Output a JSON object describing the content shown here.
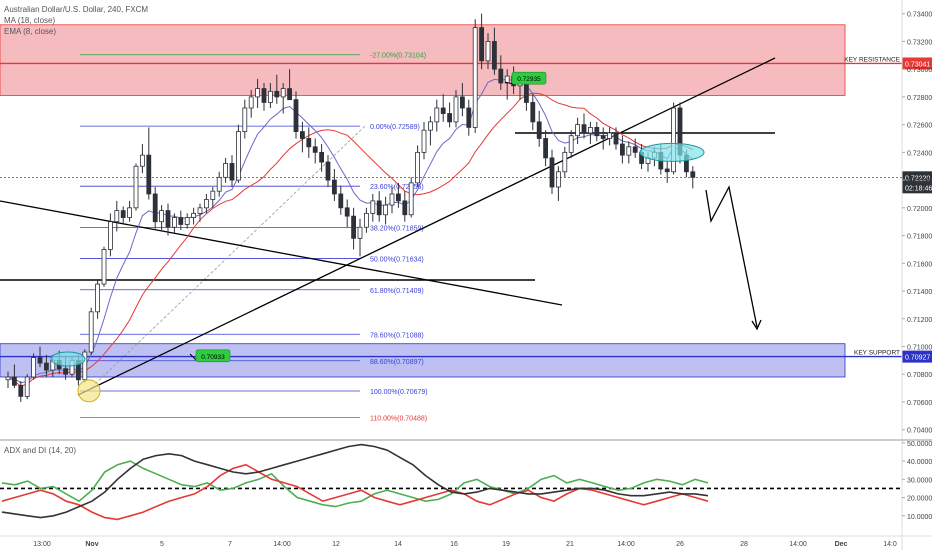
{
  "legend": {
    "symbol": "Australian Dollar/U.S. Dollar, 240, FXCM",
    "ma": "MA (18, close)",
    "ema": "EMA (8, close)",
    "adx": "ADX and DI (14, 20)"
  },
  "colors": {
    "resistance_zone": "#f4b4b8",
    "support_zone": "#b7b9f0",
    "up_candle": "#ffffff",
    "down_candle": "#2d3138",
    "ma": "#e53935",
    "ema": "#6c67c9",
    "fib": "#3a3fd6",
    "fib_top": "#26a641",
    "fib_bottom": "#e53935",
    "tag": "#2ecc40",
    "price_tag": "#2d3138",
    "resistance_tag": "#e53935",
    "support_tag": "#2b33c7"
  },
  "chart_data": {
    "type": "candlestick",
    "price_axis": {
      "ticks": [
        "0.73400",
        "0.73200",
        "0.73000",
        "0.72800",
        "0.72600",
        "0.72400",
        "0.72200",
        "0.72000",
        "0.71800",
        "0.71600",
        "0.71400",
        "0.71200",
        "0.71000",
        "0.70800",
        "0.70600",
        "0.70400"
      ],
      "ylim": [
        0.7034,
        0.7347
      ]
    },
    "time_axis": [
      "13:00",
      "Nov",
      "5",
      "7",
      "14:00",
      "12",
      "14",
      "16",
      "19",
      "21",
      "14:00",
      "26",
      "28",
      "14:00",
      "Dec",
      "14:0"
    ],
    "current_price": "0.72220",
    "countdown": "02:18:46",
    "candles": [
      [
        0.7076,
        0.7082,
        0.707,
        0.7078
      ],
      [
        0.7078,
        0.7087,
        0.707,
        0.7072
      ],
      [
        0.7072,
        0.7075,
        0.706,
        0.7064
      ],
      [
        0.7064,
        0.708,
        0.7062,
        0.7078
      ],
      [
        0.7078,
        0.7095,
        0.7076,
        0.7092
      ],
      [
        0.7092,
        0.71,
        0.7085,
        0.7088
      ],
      [
        0.7088,
        0.7094,
        0.7078,
        0.7083
      ],
      [
        0.7083,
        0.7094,
        0.7078,
        0.709
      ],
      [
        0.709,
        0.7097,
        0.708,
        0.7084
      ],
      [
        0.7084,
        0.7093,
        0.7076,
        0.708
      ],
      [
        0.708,
        0.7093,
        0.7078,
        0.709
      ],
      [
        0.709,
        0.7094,
        0.7072,
        0.7076
      ],
      [
        0.7076,
        0.7098,
        0.7074,
        0.7096
      ],
      [
        0.7096,
        0.7128,
        0.7094,
        0.7125
      ],
      [
        0.7125,
        0.7148,
        0.712,
        0.7145
      ],
      [
        0.7145,
        0.7172,
        0.7143,
        0.717
      ],
      [
        0.717,
        0.7196,
        0.7165,
        0.719
      ],
      [
        0.719,
        0.7205,
        0.7183,
        0.7198
      ],
      [
        0.7198,
        0.7201,
        0.7188,
        0.7193
      ],
      [
        0.7193,
        0.7205,
        0.719,
        0.72
      ],
      [
        0.72,
        0.7232,
        0.7198,
        0.723
      ],
      [
        0.723,
        0.7246,
        0.7225,
        0.7238
      ],
      [
        0.7238,
        0.7258,
        0.7206,
        0.721
      ],
      [
        0.721,
        0.7215,
        0.7185,
        0.719
      ],
      [
        0.719,
        0.7202,
        0.7184,
        0.7198
      ],
      [
        0.7198,
        0.7203,
        0.718,
        0.7186
      ],
      [
        0.7186,
        0.7196,
        0.7182,
        0.7193
      ],
      [
        0.7193,
        0.7198,
        0.7184,
        0.7188
      ],
      [
        0.7188,
        0.7196,
        0.7185,
        0.7193
      ],
      [
        0.7193,
        0.72,
        0.7188,
        0.7196
      ],
      [
        0.7196,
        0.7203,
        0.719,
        0.72
      ],
      [
        0.72,
        0.721,
        0.7196,
        0.7206
      ],
      [
        0.7206,
        0.7215,
        0.72,
        0.7212
      ],
      [
        0.7212,
        0.7226,
        0.7208,
        0.7222
      ],
      [
        0.7222,
        0.7236,
        0.7218,
        0.7232
      ],
      [
        0.7232,
        0.7238,
        0.7215,
        0.722
      ],
      [
        0.722,
        0.726,
        0.7218,
        0.7255
      ],
      [
        0.7255,
        0.7278,
        0.725,
        0.7272
      ],
      [
        0.7272,
        0.7285,
        0.7265,
        0.728
      ],
      [
        0.728,
        0.7293,
        0.7272,
        0.7286
      ],
      [
        0.7286,
        0.729,
        0.727,
        0.7276
      ],
      [
        0.7276,
        0.729,
        0.7272,
        0.7284
      ],
      [
        0.7284,
        0.7296,
        0.7275,
        0.728
      ],
      [
        0.728,
        0.729,
        0.7268,
        0.7286
      ],
      [
        0.7286,
        0.73,
        0.728,
        0.7278
      ],
      [
        0.7278,
        0.7284,
        0.725,
        0.7255
      ],
      [
        0.7255,
        0.7262,
        0.724,
        0.725
      ],
      [
        0.725,
        0.7258,
        0.7236,
        0.7244
      ],
      [
        0.7244,
        0.725,
        0.7232,
        0.724
      ],
      [
        0.724,
        0.7246,
        0.7226,
        0.7233
      ],
      [
        0.7233,
        0.7238,
        0.7215,
        0.722
      ],
      [
        0.722,
        0.7228,
        0.7205,
        0.721
      ],
      [
        0.721,
        0.7216,
        0.7195,
        0.72
      ],
      [
        0.72,
        0.7206,
        0.7186,
        0.7194
      ],
      [
        0.7194,
        0.72,
        0.717,
        0.7178
      ],
      [
        0.7178,
        0.7192,
        0.7165,
        0.7186
      ],
      [
        0.7186,
        0.72,
        0.7182,
        0.7196
      ],
      [
        0.7196,
        0.721,
        0.719,
        0.7205
      ],
      [
        0.7205,
        0.7212,
        0.719,
        0.7195
      ],
      [
        0.7195,
        0.7208,
        0.7188,
        0.7202
      ],
      [
        0.7202,
        0.7215,
        0.7196,
        0.721
      ],
      [
        0.721,
        0.7218,
        0.72,
        0.7205
      ],
      [
        0.7205,
        0.7212,
        0.719,
        0.7195
      ],
      [
        0.7195,
        0.7222,
        0.7193,
        0.7218
      ],
      [
        0.7218,
        0.7245,
        0.7215,
        0.724
      ],
      [
        0.724,
        0.7262,
        0.7235,
        0.7256
      ],
      [
        0.7256,
        0.7266,
        0.7245,
        0.7262
      ],
      [
        0.7262,
        0.7278,
        0.7255,
        0.7272
      ],
      [
        0.7272,
        0.7282,
        0.7262,
        0.7268
      ],
      [
        0.7268,
        0.7276,
        0.7258,
        0.7262
      ],
      [
        0.7262,
        0.7285,
        0.7258,
        0.728
      ],
      [
        0.728,
        0.729,
        0.7266,
        0.7272
      ],
      [
        0.7272,
        0.7278,
        0.7252,
        0.7258
      ],
      [
        0.7258,
        0.7336,
        0.7254,
        0.733
      ],
      [
        0.733,
        0.734,
        0.73,
        0.7306
      ],
      [
        0.7306,
        0.7326,
        0.73,
        0.732
      ],
      [
        0.732,
        0.733,
        0.7296,
        0.73
      ],
      [
        0.73,
        0.731,
        0.7285,
        0.729
      ],
      [
        0.729,
        0.73,
        0.7278,
        0.7295
      ],
      [
        0.7295,
        0.7302,
        0.7282,
        0.7288
      ],
      [
        0.7288,
        0.7296,
        0.7278,
        0.7292
      ],
      [
        0.7292,
        0.7296,
        0.727,
        0.7276
      ],
      [
        0.7276,
        0.7282,
        0.7256,
        0.7262
      ],
      [
        0.7262,
        0.727,
        0.7244,
        0.725
      ],
      [
        0.725,
        0.7256,
        0.723,
        0.7236
      ],
      [
        0.7236,
        0.7242,
        0.721,
        0.7215
      ],
      [
        0.7215,
        0.723,
        0.7205,
        0.7226
      ],
      [
        0.7226,
        0.7244,
        0.7222,
        0.724
      ],
      [
        0.724,
        0.7256,
        0.7236,
        0.7252
      ],
      [
        0.7252,
        0.7265,
        0.7246,
        0.726
      ],
      [
        0.726,
        0.7268,
        0.725,
        0.7254
      ],
      [
        0.7254,
        0.7262,
        0.7246,
        0.7258
      ],
      [
        0.7258,
        0.7262,
        0.7248,
        0.7252
      ],
      [
        0.7252,
        0.7258,
        0.7242,
        0.725
      ],
      [
        0.725,
        0.7258,
        0.7245,
        0.7254
      ],
      [
        0.7254,
        0.7258,
        0.7242,
        0.7246
      ],
      [
        0.7246,
        0.7252,
        0.7232,
        0.7238
      ],
      [
        0.7238,
        0.7248,
        0.7232,
        0.7244
      ],
      [
        0.7244,
        0.725,
        0.7236,
        0.724
      ],
      [
        0.724,
        0.7246,
        0.7228,
        0.7232
      ],
      [
        0.7232,
        0.724,
        0.7226,
        0.7236
      ],
      [
        0.7236,
        0.7244,
        0.723,
        0.724
      ],
      [
        0.724,
        0.7246,
        0.7224,
        0.7228
      ],
      [
        0.7228,
        0.7234,
        0.7218,
        0.7226
      ],
      [
        0.7226,
        0.7276,
        0.7224,
        0.7272
      ],
      [
        0.7272,
        0.7276,
        0.7232,
        0.7238
      ],
      [
        0.7238,
        0.7242,
        0.7222,
        0.7226
      ],
      [
        0.7226,
        0.723,
        0.7214,
        0.7222
      ]
    ],
    "horizontal_lines": [
      {
        "label": "KEY RESISTANCE",
        "value": 0.73041
      },
      {
        "label": "KEY SUPPORT",
        "value": 0.70927
      }
    ],
    "zones": [
      {
        "name": "resistance",
        "from": 0.7281,
        "to": 0.7332
      },
      {
        "name": "support",
        "from": 0.7078,
        "to": 0.7102
      }
    ],
    "fibonacci": [
      {
        "label": "-27.00%(0.73104)",
        "value": 0.73104
      },
      {
        "label": "0.00%(0.72589)",
        "value": 0.72589
      },
      {
        "label": "23.60%(0.72156)",
        "value": 0.72156
      },
      {
        "label": "38.20%(0.71859)",
        "value": 0.71859
      },
      {
        "label": "50.00%(0.71634)",
        "value": 0.71634
      },
      {
        "label": "61.80%(0.71409)",
        "value": 0.71409
      },
      {
        "label": "78.60%(0.71088)",
        "value": 0.71088
      },
      {
        "label": "88.60%(0.70897)",
        "value": 0.70897
      },
      {
        "label": "100.00%(0.70679)",
        "value": 0.70679
      },
      {
        "label": "110.00%(0.70488)",
        "value": 0.70488
      }
    ],
    "callouts": [
      "0.72935",
      "0.70933"
    ],
    "adx": {
      "ticks": [
        "50.0000",
        "40.0000",
        "30.0000",
        "20.0000",
        "10.0000"
      ],
      "ylim": [
        0,
        51
      ],
      "threshold": 25,
      "adx_values": [
        12,
        11,
        10,
        9,
        10,
        12,
        15,
        18,
        23,
        30,
        36,
        41,
        43,
        44,
        43,
        40,
        38,
        36,
        34,
        33,
        34,
        36,
        38,
        40,
        42,
        44,
        46,
        48,
        49,
        48,
        46,
        42,
        38,
        32,
        27,
        23,
        22,
        23,
        25,
        24,
        23,
        22,
        22,
        23,
        24,
        25,
        25,
        24,
        22,
        21,
        21,
        22,
        23,
        22,
        22,
        21
      ],
      "plus_di_values": [
        28,
        27,
        29,
        25,
        26,
        22,
        18,
        24,
        34,
        38,
        40,
        36,
        33,
        30,
        27,
        26,
        28,
        24,
        25,
        28,
        30,
        33,
        26,
        20,
        18,
        16,
        15,
        17,
        18,
        22,
        24,
        22,
        20,
        18,
        19,
        22,
        28,
        30,
        26,
        24,
        22,
        25,
        30,
        32,
        28,
        30,
        28,
        26,
        24,
        25,
        28,
        30,
        29,
        27,
        30,
        28
      ],
      "minus_di_values": [
        18,
        20,
        22,
        24,
        22,
        18,
        16,
        12,
        9,
        8,
        10,
        12,
        15,
        18,
        20,
        22,
        26,
        32,
        36,
        38,
        34,
        30,
        28,
        26,
        22,
        18,
        20,
        22,
        24,
        20,
        18,
        16,
        18,
        20,
        22,
        24,
        22,
        18,
        16,
        19,
        22,
        24,
        20,
        18,
        22,
        25,
        24,
        22,
        20,
        18,
        16,
        18,
        20,
        22,
        20,
        18
      ]
    }
  }
}
